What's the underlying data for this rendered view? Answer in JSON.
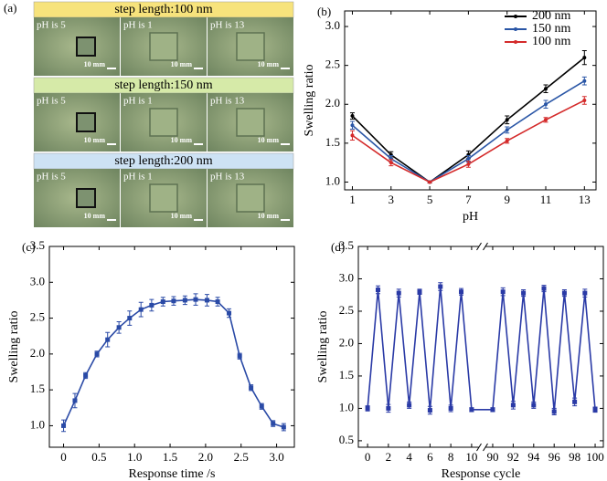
{
  "panel_a": {
    "label": "(a)",
    "scale": "10 mm",
    "rows": [
      {
        "title": "step length:100 nm",
        "cells": [
          "pH is 5",
          "pH is 1",
          "pH is 13"
        ]
      },
      {
        "title": "step length:150 nm",
        "cells": [
          "pH is 5",
          "pH is 1",
          "pH is 13"
        ]
      },
      {
        "title": "step length:200 nm",
        "cells": [
          "pH is 5",
          "pH is 1",
          "pH is 13"
        ]
      }
    ]
  },
  "chart_data": [
    {
      "type": "line",
      "panel_label": "(b)",
      "xlabel": "pH",
      "ylabel": "Swelling ratio",
      "x": [
        1,
        3,
        5,
        7,
        9,
        11,
        13
      ],
      "xlim": [
        0.6,
        13.6
      ],
      "xticks": [
        1,
        3,
        5,
        7,
        9,
        11,
        13
      ],
      "ylim": [
        0.9,
        3.2
      ],
      "yticks": [
        {
          "value": 1,
          "label": "1.0"
        },
        1.5,
        {
          "value": 2,
          "label": "2.0"
        },
        2.5,
        {
          "value": 3,
          "label": "3.0"
        }
      ],
      "legend": "upper right",
      "marker": "circle",
      "series": [
        {
          "name": "200 nm",
          "color": "#000000",
          "values": [
            1.85,
            1.35,
            1.0,
            1.35,
            1.8,
            2.2,
            2.6
          ],
          "errors": [
            0.04,
            0.04,
            0.01,
            0.05,
            0.05,
            0.05,
            0.09
          ]
        },
        {
          "name": "150 nm",
          "color": "#2a56a6",
          "values": [
            1.73,
            1.3,
            1.0,
            1.3,
            1.67,
            2.0,
            2.3
          ],
          "errors": [
            0.05,
            0.04,
            0.01,
            0.04,
            0.04,
            0.05,
            0.05
          ]
        },
        {
          "name": "100 nm",
          "color": "#d42a2a",
          "values": [
            1.6,
            1.25,
            1.0,
            1.23,
            1.53,
            1.8,
            2.05
          ],
          "errors": [
            0.06,
            0.04,
            0.01,
            0.04,
            0.03,
            0.03,
            0.05
          ]
        }
      ]
    },
    {
      "type": "line",
      "panel_label": "(c)",
      "xlabel": "Response time /s",
      "ylabel": "Swelling ratio",
      "x": [
        0,
        0.16,
        0.31,
        0.47,
        0.62,
        0.78,
        0.93,
        1.09,
        1.24,
        1.4,
        1.55,
        1.71,
        1.86,
        2.02,
        2.17,
        2.33,
        2.48,
        2.64,
        2.79,
        2.95,
        3.1
      ],
      "xlim": [
        -0.2,
        3.25
      ],
      "xticks": [
        {
          "value": 0,
          "label": "0"
        },
        0.5,
        {
          "value": 1,
          "label": "1.0"
        },
        1.5,
        {
          "value": 2,
          "label": "2.0"
        },
        2.5,
        {
          "value": 3,
          "label": "3.0"
        }
      ],
      "ylim": [
        0.7,
        3.5
      ],
      "yticks": [
        {
          "value": 1,
          "label": "1.0"
        },
        1.5,
        {
          "value": 2,
          "label": "2.0"
        },
        2.5,
        {
          "value": 3,
          "label": "3.0"
        },
        3.5
      ],
      "color": "#2a4aa6",
      "marker": "square",
      "values": [
        1.0,
        1.35,
        1.7,
        2.0,
        2.2,
        2.37,
        2.5,
        2.62,
        2.68,
        2.73,
        2.74,
        2.75,
        2.76,
        2.75,
        2.73,
        2.57,
        1.97,
        1.53,
        1.27,
        1.03,
        0.98
      ],
      "errors": [
        0.08,
        0.1,
        0.04,
        0.04,
        0.1,
        0.08,
        0.1,
        0.1,
        0.08,
        0.06,
        0.06,
        0.06,
        0.08,
        0.08,
        0.06,
        0.06,
        0.04,
        0.04,
        0.04,
        0.04,
        0.05
      ]
    },
    {
      "type": "line",
      "panel_label": "(d)",
      "xlabel": "Response cycle",
      "ylabel": "Swelling ratio",
      "x": [
        0,
        1,
        2,
        3,
        4,
        5,
        6,
        7,
        8,
        9,
        10,
        90,
        91,
        92,
        93,
        94,
        95,
        96,
        97,
        98,
        99,
        100
      ],
      "x_segments": [
        {
          "xlim": [
            -0.8,
            10.8
          ],
          "xticks": [
            0,
            2,
            4,
            6,
            8,
            10
          ]
        },
        {
          "xlim": [
            89.2,
            100.8
          ],
          "xticks": [
            90,
            92,
            94,
            96,
            98,
            100
          ]
        }
      ],
      "ylim": [
        0.4,
        3.5
      ],
      "yticks": [
        0.5,
        {
          "value": 1,
          "label": "1.0"
        },
        1.5,
        {
          "value": 2,
          "label": "2.0"
        },
        2.5,
        {
          "value": 3,
          "label": "3.0"
        },
        3.5
      ],
      "color": "#2a3aa6",
      "marker": "square",
      "values": [
        1.0,
        2.83,
        1.0,
        2.78,
        1.05,
        2.8,
        0.97,
        2.88,
        1.0,
        2.8,
        0.98,
        0.98,
        2.8,
        1.05,
        2.78,
        1.05,
        2.85,
        0.95,
        2.78,
        1.1,
        2.78,
        0.98
      ],
      "errors": [
        0.04,
        0.06,
        0.06,
        0.06,
        0.05,
        0.04,
        0.06,
        0.06,
        0.05,
        0.05,
        0.03,
        0.03,
        0.06,
        0.06,
        0.05,
        0.05,
        0.05,
        0.05,
        0.05,
        0.06,
        0.06,
        0.04
      ]
    }
  ]
}
